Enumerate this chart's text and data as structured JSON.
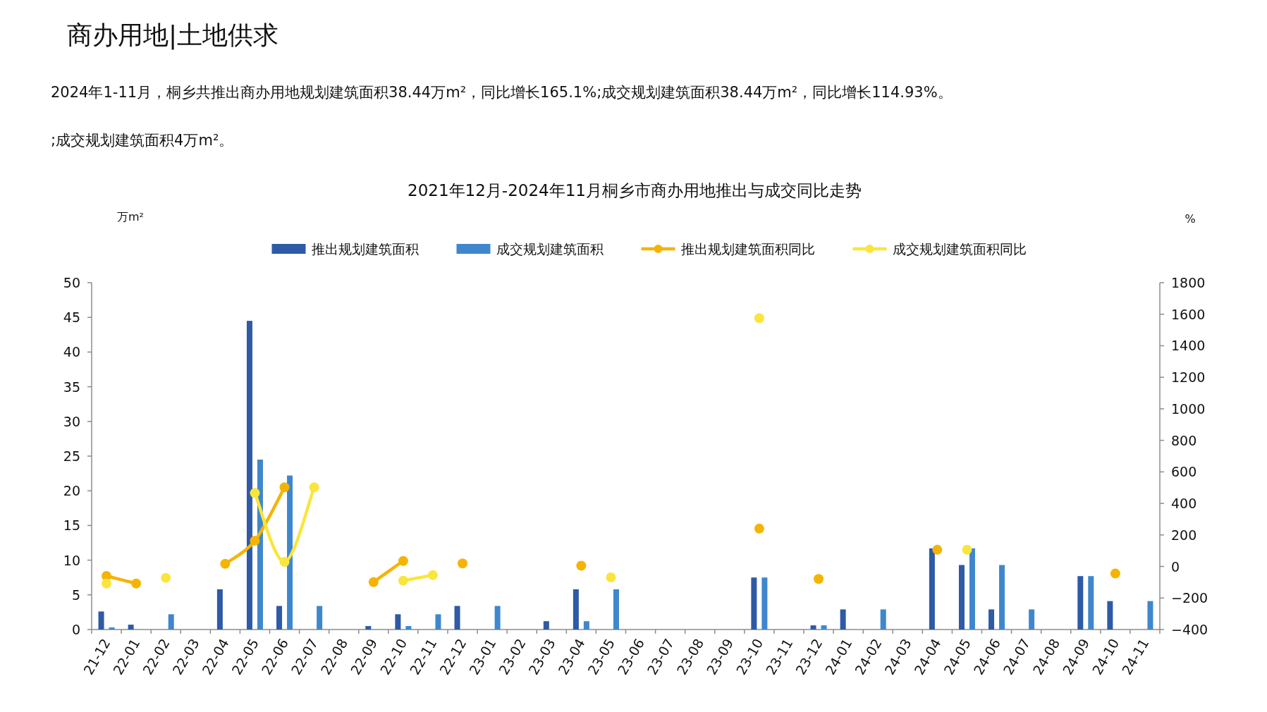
{
  "chart_data": {
    "type": "bar",
    "title": "2021年12月-2024年11月桐乡市商办用地推出与成交同比走势",
    "annotations": [
      "商办用地|土地供求",
      "2024年1-11月，桐乡共推出商办用地规划建筑面积38.44万m²，同比增长165.1%;成交规划建筑面积38.44万m²，同比增长114.93%。",
      ";成交规划建筑面积4万m²。"
    ],
    "ylabel": "万m²",
    "y2label": "%",
    "categories": [
      "21-12",
      "22-01",
      "22-02",
      "22-03",
      "22-04",
      "22-05",
      "22-06",
      "22-07",
      "22-08",
      "22-09",
      "22-10",
      "22-11",
      "22-12",
      "23-01",
      "23-02",
      "23-03",
      "23-04",
      "23-05",
      "23-06",
      "23-07",
      "23-08",
      "23-09",
      "23-10",
      "23-11",
      "23-12",
      "24-01",
      "24-02",
      "24-03",
      "24-04",
      "24-05",
      "24-06",
      "24-07",
      "24-08",
      "24-09",
      "24-10",
      "24-11"
    ],
    "series": [
      {
        "name": "推出规划建筑面积",
        "color": "#2e5aa6",
        "values": [
          2.6,
          0.7,
          0,
          0,
          5.8,
          44.5,
          3.4,
          0,
          0,
          0.5,
          2.2,
          0,
          3.4,
          0,
          0,
          1.2,
          5.8,
          0,
          0,
          0,
          0,
          0,
          7.5,
          0,
          0.6,
          2.9,
          0,
          0,
          11.7,
          9.3,
          2.9,
          0,
          0,
          7.7,
          4.1,
          0
        ]
      },
      {
        "name": "成交规划建筑面积",
        "color": "#3f87cd",
        "values": [
          0.3,
          0,
          2.2,
          0,
          0,
          24.5,
          22.2,
          3.4,
          0,
          0,
          0.5,
          2.2,
          0,
          3.4,
          0,
          0,
          1.2,
          5.8,
          0,
          0,
          0,
          0,
          7.5,
          0,
          0.6,
          0,
          2.9,
          0,
          0,
          11.7,
          9.3,
          2.9,
          0,
          7.7,
          0,
          4.1
        ]
      },
      {
        "name": "推出规划建筑面积同比",
        "type": "line",
        "axis": "y2",
        "color": "#f5b404",
        "values": [
          -60,
          -108,
          null,
          null,
          17,
          163,
          502,
          null,
          null,
          -99,
          35,
          null,
          19,
          null,
          null,
          null,
          5,
          null,
          null,
          null,
          null,
          null,
          240,
          null,
          -79,
          null,
          null,
          null,
          106,
          null,
          null,
          null,
          null,
          null,
          -45,
          null
        ]
      },
      {
        "name": "成交规划建筑面积同比",
        "type": "line",
        "axis": "y2",
        "color": "#fae53c",
        "values": [
          -108,
          null,
          -72,
          null,
          null,
          466,
          29,
          502,
          null,
          null,
          -90,
          -55,
          null,
          null,
          null,
          null,
          null,
          -69,
          null,
          null,
          null,
          null,
          1575,
          null,
          null,
          null,
          null,
          null,
          null,
          106,
          null,
          null,
          null,
          null,
          null,
          null
        ]
      }
    ],
    "ylim": [
      0,
      50
    ],
    "yticks": [
      0,
      5,
      10,
      15,
      20,
      25,
      30,
      35,
      40,
      45,
      50
    ],
    "y2lim": [
      -400,
      1800
    ],
    "y2ticks": [
      -400,
      -200,
      0,
      200,
      400,
      600,
      800,
      1000,
      1200,
      1400,
      1600,
      1800
    ],
    "legend": "top",
    "marker": "circle",
    "grid": false
  }
}
